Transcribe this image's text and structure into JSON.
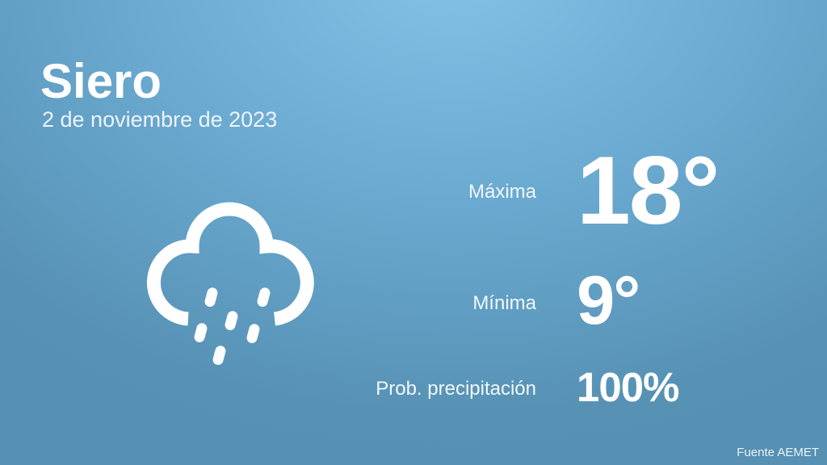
{
  "location": "Siero",
  "date": "2 de noviembre de 2023",
  "weather_icon": "cloud-rain-icon",
  "stats": [
    {
      "label": "Máxima",
      "value": "18°"
    },
    {
      "label": "Mínima",
      "value": "9°"
    },
    {
      "label": "Prob. precipitación",
      "value": "100%"
    }
  ],
  "source": "Fuente AEMET",
  "colors": {
    "background_top": "#84c3e8",
    "background_bottom": "#5690b2",
    "text": "#ffffff"
  }
}
